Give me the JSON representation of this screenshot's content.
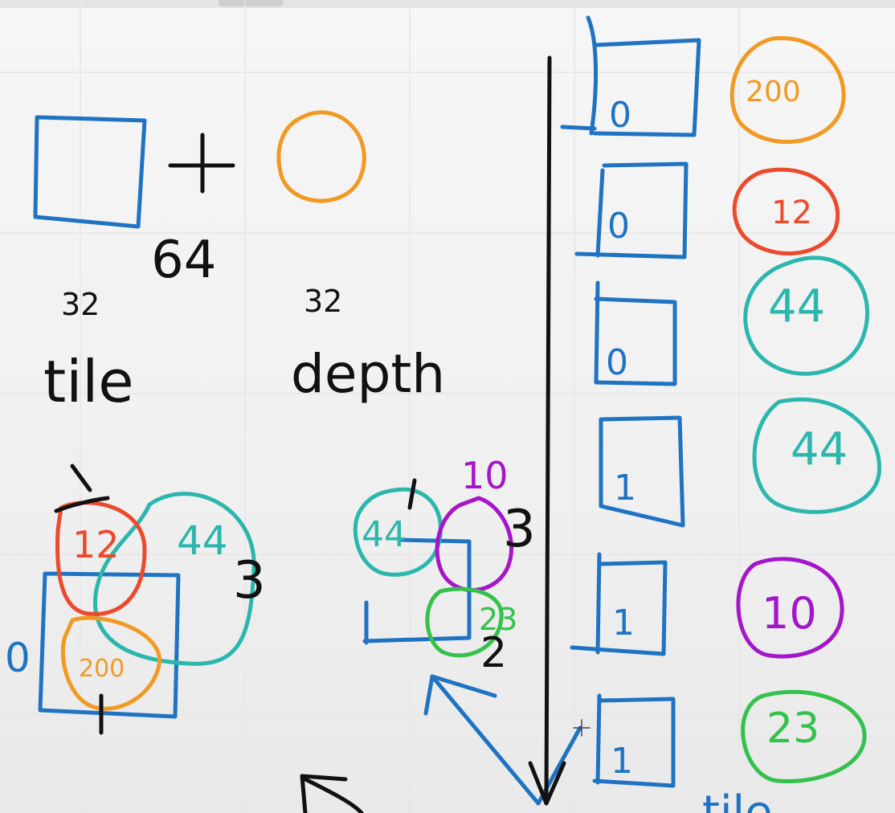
{
  "labels": {
    "num_64": "64",
    "tile_top": "32",
    "tile_word": "tile",
    "depth_top": "32",
    "depth_word": "depth",
    "left_mark_1": "1",
    "left_circle_12": "12",
    "left_blob_44": "44",
    "left_mark_3": "3",
    "left_mark_0": "0",
    "left_circle_200": "200",
    "mid_mark_1": "1",
    "mid_circle_44": "44",
    "mid_label_10": "10",
    "mid_mark_3": "3",
    "mid_circle_23": "23",
    "mid_mark_2": "2",
    "right_tile_word": "tile"
  },
  "column_rows": [
    {
      "box": "0",
      "value": "200",
      "color": "#f19a23"
    },
    {
      "box": "0",
      "value": "12",
      "color": "#ec4a2c"
    },
    {
      "box": "0",
      "value": "44",
      "color": "#2bb7ad"
    },
    {
      "box": "1",
      "value": "44",
      "color": "#2bb7ad"
    },
    {
      "box": "1",
      "value": "10",
      "color": "#a416c9"
    },
    {
      "box": "1",
      "value": "23",
      "color": "#34c14c"
    }
  ],
  "colors": {
    "blue": "#1f73c2",
    "orange": "#f19a23",
    "red": "#ec4a2c",
    "teal": "#2bb7ad",
    "purple": "#a416c9",
    "green": "#34c14c",
    "black": "#111111"
  }
}
